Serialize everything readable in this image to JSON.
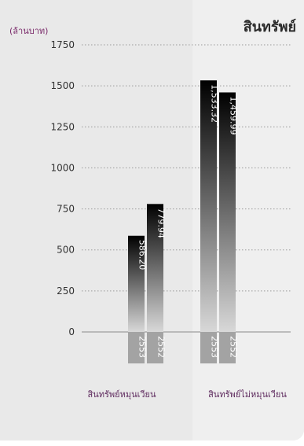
{
  "chart_data": {
    "type": "bar",
    "title": "สินทรัพย์",
    "unit_label": "(ล้านบาท)",
    "yticks": [
      0,
      250,
      500,
      750,
      1000,
      1250,
      1500,
      1750
    ],
    "ylim": [
      0,
      1750
    ],
    "categories": [
      "สินทรัพย์หมุนเวียน",
      "สินทรัพย์ไม่หมุนเวียน"
    ],
    "year_labels": [
      "2553",
      "2552"
    ],
    "values": [
      [
        586.2,
        779.94
      ],
      [
        1533.32,
        1459.99
      ]
    ],
    "value_labels": [
      [
        "586.20",
        "779.94"
      ],
      [
        "1,533.32",
        "1,459.99"
      ]
    ],
    "grid": true
  },
  "colors": {
    "bar_top": "#000000",
    "bar_bottom": "#d8d8d8",
    "year_tab": "#a3a3a3",
    "category_text": "#5e2a5e"
  }
}
